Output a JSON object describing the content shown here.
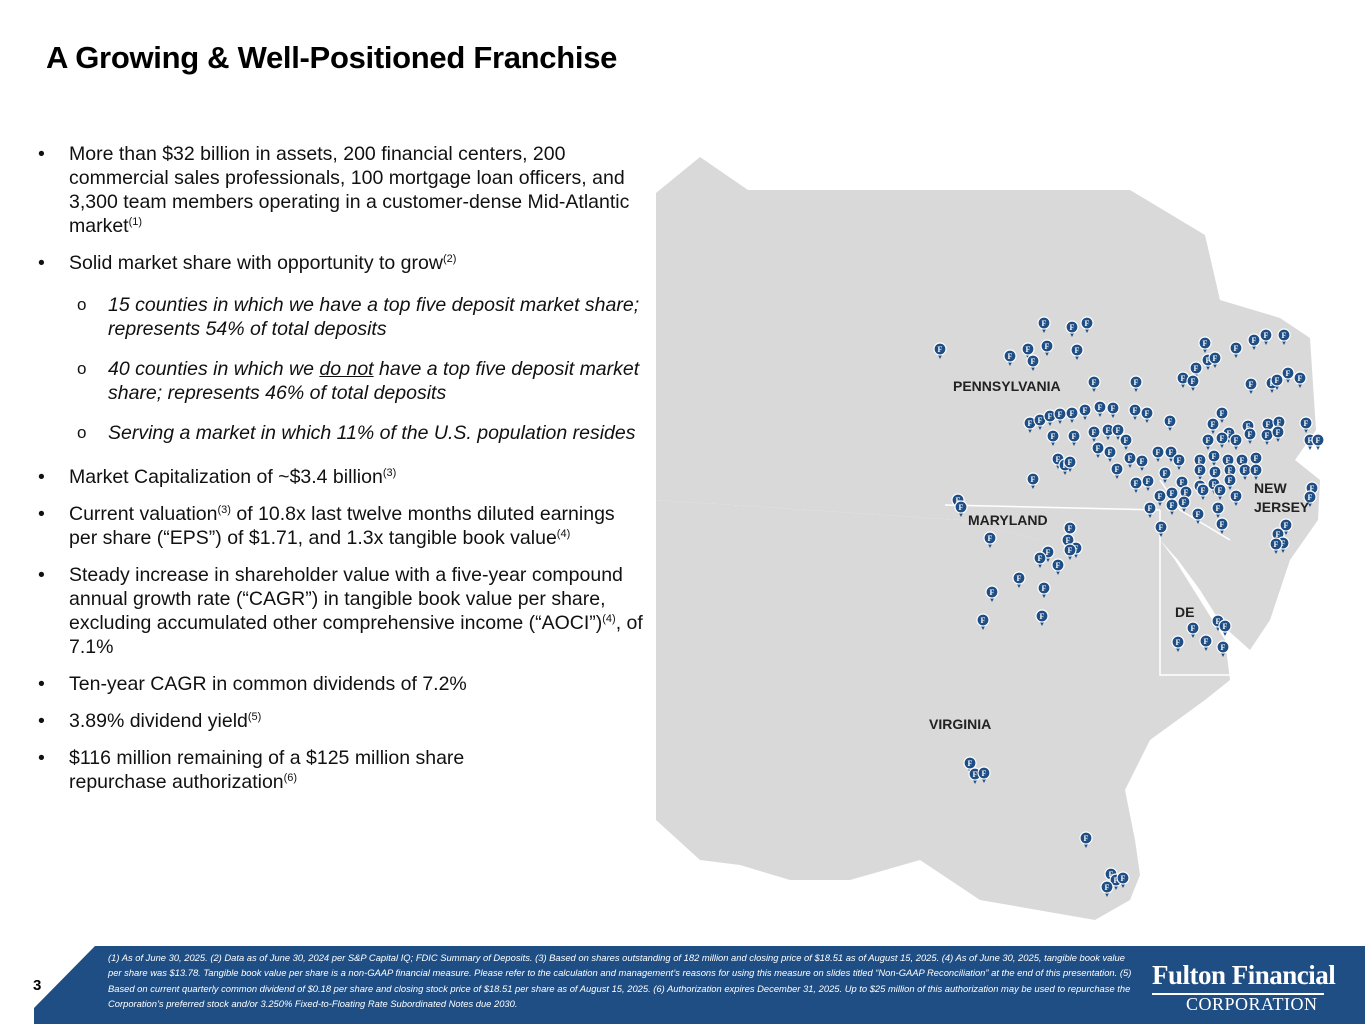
{
  "title": "A Growing & Well-Positioned Franchise",
  "bullets": {
    "b1": {
      "text": "More than $32 billion in assets, 200 financial centers, 200 commercial sales professionals, 100 mortgage loan officers, and 3,300 team members operating in a customer-dense Mid-Atlantic market",
      "sup": "(1)"
    },
    "b2": {
      "text": "Solid market share with opportunity to grow",
      "sup": "(2)"
    },
    "s1": "15 counties in which we have a top five deposit market share; represents  54% of total deposits",
    "s2_pre": "40 counties in which we ",
    "s2_under": "do not",
    "s2_post": " have a top five deposit market share; represents  46% of total deposits",
    "s3": "Serving a market in which 11% of the U.S. population resides",
    "b3": {
      "text": "Market Capitalization of ~$3.4 billion",
      "sup": "(3)"
    },
    "b4": {
      "pre": "Current valuation",
      "sup1": "(3)",
      "mid": " of 10.8x last twelve months diluted earnings per share (“EPS”) of $1.71, and 1.3x tangible book value",
      "sup2": "(4)"
    },
    "b5": {
      "pre": "Steady increase in shareholder value with a five-year compound annual growth rate (“CAGR”) in tangible book value per share, excluding accumulated other comprehensive income (“AOCI”)",
      "sup": "(4)",
      "post": ", of 7.1%"
    },
    "b6": {
      "text": "Ten-year CAGR in common dividends of 7.2%"
    },
    "b7": {
      "text": "3.89% dividend yield",
      "sup": "(5)"
    },
    "b8": {
      "text": "$116 million remaining of a $125 million share repurchase authorization",
      "sup": "(6)"
    }
  },
  "map": {
    "states": [
      "PENNSYLVANIA",
      "MARYLAND",
      "NEW",
      "JERSEY",
      "DE",
      "VIRGINIA"
    ],
    "marker_letter": "F",
    "land_color": "#d9d9d9",
    "marker_color": "#1f4e84"
  },
  "footer": {
    "page_number": "3",
    "notes": "(1) As of June 30, 2025. (2) Data as of June 30, 2024 per S&P Capital IQ; FDIC Summary of Deposits. (3) Based on shares outstanding of 182 million and closing price of $18.51 as of August 15, 2025. (4) As of June 30, 2025, tangible book value per share was $13.78. Tangible book value per share is a non-GAAP financial measure. Please refer to the calculation and management’s reasons for using this measure on slides titled “Non-GAAP Reconciliation” at the end of this presentation. (5) Based on current quarterly common dividend of $0.18 per share and closing stock price of $18.51 per share  as of August 15, 2025. (6) Authorization expires December 31, 2025. Up to $25 million of this authorization may be used to repurchase the Corporation’s preferred stock and/or 3.250% Fixed-to-Floating Rate Subordinated Notes due 2030.",
    "logo_line1": "Fulton Financial",
    "logo_line2": "CORPORATION",
    "color": "#1f4e84"
  }
}
